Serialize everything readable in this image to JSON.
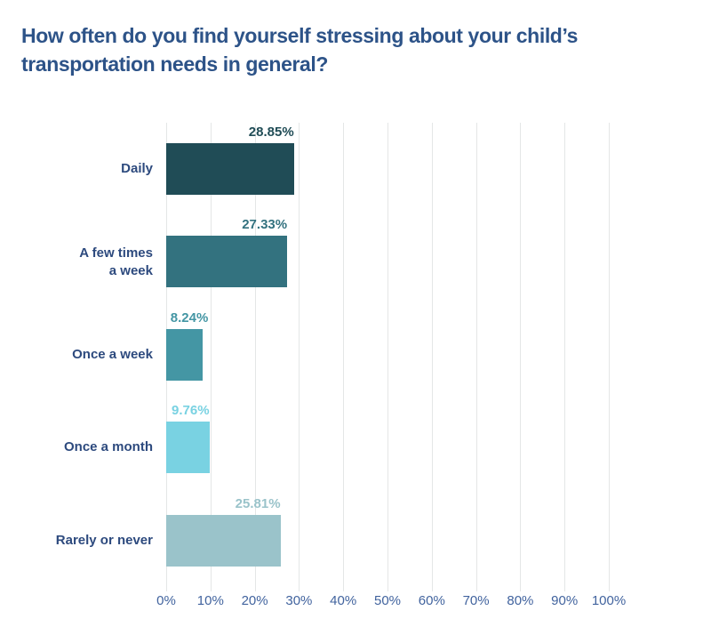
{
  "chart_data": {
    "type": "bar",
    "orientation": "horizontal",
    "title": "How often do you find yourself stressing about your child’s transportation needs in general?",
    "categories": [
      "Daily",
      "A few times\na week",
      "Once a week",
      "Once a month",
      "Rarely or never"
    ],
    "values": [
      28.85,
      27.33,
      8.24,
      9.76,
      25.81
    ],
    "value_labels": [
      "28.85%",
      "27.33%",
      "8.24%",
      "9.76%",
      "25.81%"
    ],
    "bar_colors": [
      "#204c56",
      "#33727f",
      "#4496a4",
      "#79d2e2",
      "#9ac3ca"
    ],
    "x_ticks": [
      "0%",
      "10%",
      "20%",
      "30%",
      "40%",
      "50%",
      "60%",
      "70%",
      "80%",
      "90%",
      "100%"
    ],
    "xlim": [
      0,
      100
    ],
    "grid": "vertical",
    "legend": "none",
    "colors": {
      "title_text": "#2d5388",
      "category_text": "#2d4a7e",
      "tick_text": "#41639e",
      "gridline": "#e4e6e6",
      "background": "#ffffff"
    }
  }
}
